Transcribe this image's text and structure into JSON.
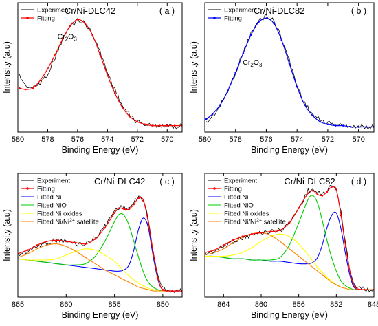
{
  "chart_data": [
    {
      "id": "a",
      "type": "line",
      "title": "Cr/Ni-DLC42",
      "panel_tag": "( a )",
      "xlabel": "Binding Energy (eV)",
      "ylabel": "Intensity (a.u)",
      "xlim": [
        580,
        569
      ],
      "ylim": [
        0,
        1
      ],
      "xticks": [
        580,
        578,
        576,
        574,
        572,
        570
      ],
      "legend_position": "top-left",
      "annotation": {
        "text": "Cr",
        "sub1": "2",
        "mid": "O",
        "sub2": "3",
        "x": 576.7,
        "y": 0.72
      },
      "series": [
        {
          "name": "Experiment",
          "color": "#000000",
          "style": "noisy",
          "marker": false,
          "x": [
            579.9,
            579.5,
            579.0,
            578.5,
            578.0,
            577.5,
            577.0,
            576.5,
            576.0,
            575.5,
            575.0,
            574.5,
            574.0,
            573.5,
            573.0,
            572.5,
            572.0,
            571.5,
            571.0,
            570.5,
            570.0,
            569.5,
            569.0
          ],
          "y": [
            0.44,
            0.36,
            0.34,
            0.38,
            0.45,
            0.58,
            0.72,
            0.82,
            0.87,
            0.84,
            0.76,
            0.62,
            0.46,
            0.33,
            0.2,
            0.13,
            0.08,
            0.06,
            0.05,
            0.05,
            0.05,
            0.04,
            0.05
          ]
        },
        {
          "name": "Fitting",
          "color": "#ff0000",
          "style": "smooth",
          "marker": true,
          "x": [
            579.9,
            579.5,
            579.0,
            578.5,
            578.0,
            577.5,
            577.0,
            576.5,
            576.0,
            575.5,
            575.0,
            574.5,
            574.0,
            573.5,
            573.0,
            572.5,
            572.0,
            571.5,
            571.0,
            570.5,
            570.0,
            569.5,
            569.0
          ],
          "y": [
            0.34,
            0.33,
            0.34,
            0.4,
            0.49,
            0.6,
            0.72,
            0.82,
            0.87,
            0.84,
            0.75,
            0.6,
            0.44,
            0.3,
            0.19,
            0.12,
            0.08,
            0.06,
            0.05,
            0.05,
            0.05,
            0.05,
            0.05
          ]
        }
      ]
    },
    {
      "id": "b",
      "type": "line",
      "title": "Cr/Ni-DLC82",
      "panel_tag": "( b )",
      "xlabel": "Binding Energy (eV)",
      "ylabel": "Intensity (a.u)",
      "xlim": [
        580,
        569
      ],
      "ylim": [
        0,
        1
      ],
      "xticks": [
        580,
        578,
        576,
        574,
        572,
        570
      ],
      "legend_position": "top-left",
      "annotation": {
        "text": "Cr",
        "sub1": "2",
        "mid": "O",
        "sub2": "3",
        "x": 576.9,
        "y": 0.52
      },
      "series": [
        {
          "name": "Experiment",
          "color": "#000000",
          "style": "noisy",
          "marker": false,
          "x": [
            579.9,
            579.5,
            579.0,
            578.5,
            578.0,
            577.5,
            577.0,
            576.5,
            576.0,
            575.5,
            575.0,
            574.5,
            574.0,
            573.5,
            573.0,
            572.5,
            572.0,
            571.5,
            571.0,
            570.5,
            570.0,
            569.5,
            569.0
          ],
          "y": [
            0.07,
            0.12,
            0.2,
            0.32,
            0.46,
            0.62,
            0.76,
            0.86,
            0.9,
            0.86,
            0.73,
            0.55,
            0.36,
            0.22,
            0.14,
            0.09,
            0.07,
            0.06,
            0.05,
            0.05,
            0.04,
            0.04,
            0.04
          ]
        },
        {
          "name": "Fitting",
          "color": "#0000ff",
          "style": "smooth",
          "marker": true,
          "x": [
            579.9,
            579.5,
            579.0,
            578.5,
            578.0,
            577.5,
            577.0,
            576.5,
            576.0,
            575.5,
            575.0,
            574.5,
            574.0,
            573.5,
            573.0,
            572.5,
            572.0,
            571.5,
            571.0,
            570.5,
            570.0,
            569.5,
            569.0
          ],
          "y": [
            0.1,
            0.14,
            0.21,
            0.32,
            0.46,
            0.61,
            0.75,
            0.85,
            0.88,
            0.84,
            0.71,
            0.53,
            0.35,
            0.21,
            0.13,
            0.08,
            0.06,
            0.05,
            0.05,
            0.04,
            0.04,
            0.04,
            0.04
          ]
        }
      ]
    },
    {
      "id": "c",
      "type": "line",
      "title": "Cr/Ni-DLC42",
      "panel_tag": "( c )",
      "xlabel": "Binding Energy (eV)",
      "ylabel": "Intensity (a.u)",
      "xlim": [
        865,
        848
      ],
      "ylim": [
        0,
        1
      ],
      "xticks": [
        865,
        860,
        855,
        850
      ],
      "legend_position": "top-left",
      "series": [
        {
          "name": "Experiment",
          "color": "#000000",
          "style": "noisy",
          "marker": false,
          "x": [
            865,
            864,
            863,
            862,
            861,
            860,
            859,
            858,
            857,
            856,
            855,
            854.5,
            854,
            853.5,
            853,
            852.5,
            852,
            851.5,
            851,
            850.5,
            850,
            849,
            848
          ],
          "y": [
            0.34,
            0.37,
            0.41,
            0.44,
            0.46,
            0.45,
            0.43,
            0.43,
            0.48,
            0.57,
            0.7,
            0.73,
            0.72,
            0.72,
            0.76,
            0.81,
            0.79,
            0.62,
            0.38,
            0.16,
            0.07,
            0.05,
            0.05
          ]
        },
        {
          "name": "Fitting",
          "color": "#ff0000",
          "style": "smooth",
          "marker": true,
          "x": [
            865,
            864,
            863,
            862,
            861,
            860,
            859,
            858,
            857,
            856,
            855,
            854.5,
            854,
            853.5,
            853,
            852.5,
            852,
            851.5,
            851,
            850.5,
            850,
            849,
            848
          ],
          "y": [
            0.35,
            0.38,
            0.42,
            0.45,
            0.46,
            0.45,
            0.44,
            0.43,
            0.47,
            0.56,
            0.68,
            0.72,
            0.71,
            0.71,
            0.75,
            0.8,
            0.78,
            0.6,
            0.36,
            0.15,
            0.06,
            0.05,
            0.05
          ]
        },
        {
          "name": "Fitted Ni",
          "color": "#0000ff",
          "style": "smooth",
          "marker": false,
          "x": [
            865,
            864,
            863,
            862,
            861,
            860,
            859,
            858,
            857,
            856,
            855,
            854.5,
            854,
            853.5,
            853,
            852.5,
            852,
            851.5,
            851,
            850.5,
            850,
            849,
            848
          ],
          "y": [
            0.31,
            0.3,
            0.29,
            0.28,
            0.27,
            0.26,
            0.25,
            0.24,
            0.23,
            0.22,
            0.21,
            0.21,
            0.22,
            0.26,
            0.38,
            0.55,
            0.64,
            0.56,
            0.33,
            0.14,
            0.06,
            0.05,
            0.05
          ]
        },
        {
          "name": "Fitted NiO",
          "color": "#00cc00",
          "style": "smooth",
          "marker": false,
          "x": [
            865,
            864,
            863,
            862,
            861,
            860,
            859,
            858,
            857,
            856,
            855,
            854.5,
            854,
            853.5,
            853,
            852.5,
            852,
            851.5,
            851,
            850.5,
            850,
            849,
            848
          ],
          "y": [
            0.31,
            0.3,
            0.29,
            0.28,
            0.27,
            0.26,
            0.26,
            0.27,
            0.33,
            0.45,
            0.61,
            0.67,
            0.66,
            0.58,
            0.45,
            0.32,
            0.2,
            0.12,
            0.08,
            0.06,
            0.05,
            0.05,
            0.05
          ]
        },
        {
          "name": "Fitted Ni oxides",
          "color": "#ffff00",
          "style": "smooth",
          "marker": false,
          "x": [
            865,
            864,
            863,
            862,
            861,
            860,
            859,
            858,
            857,
            856,
            855,
            854.5,
            854,
            853.5,
            853,
            852.5,
            852,
            851.5,
            851,
            850.5,
            850,
            849,
            848
          ],
          "y": [
            0.31,
            0.3,
            0.3,
            0.3,
            0.31,
            0.34,
            0.37,
            0.39,
            0.38,
            0.34,
            0.29,
            0.25,
            0.21,
            0.17,
            0.14,
            0.11,
            0.09,
            0.07,
            0.06,
            0.05,
            0.05,
            0.05,
            0.05
          ]
        },
        {
          "name": "Fitted Ni/Ni2+ satellite",
          "color": "#ff8000",
          "style": "smooth",
          "marker": false,
          "x": [
            865,
            864,
            863,
            862,
            861,
            860,
            859,
            858,
            857,
            856,
            855,
            854.5,
            854,
            853.5,
            853,
            852.5,
            852,
            851.5,
            851,
            850.5,
            850,
            849,
            848
          ],
          "y": [
            0.32,
            0.35,
            0.39,
            0.42,
            0.43,
            0.41,
            0.37,
            0.32,
            0.27,
            0.22,
            0.18,
            0.16,
            0.14,
            0.12,
            0.1,
            0.08,
            0.07,
            0.06,
            0.05,
            0.05,
            0.05,
            0.05,
            0.05
          ]
        }
      ]
    },
    {
      "id": "d",
      "type": "line",
      "title": "Cr/Ni-DLC82",
      "panel_tag": "( d )",
      "xlabel": "Binding Energy (eV)",
      "ylabel": "Intensity (a.u)",
      "xlim": [
        866,
        848
      ],
      "ylim": [
        0,
        1
      ],
      "xticks": [
        864,
        860,
        856,
        852,
        848
      ],
      "legend_position": "top-left",
      "series": [
        {
          "name": "Experiment",
          "color": "#000000",
          "style": "noisy",
          "marker": false,
          "x": [
            866,
            865,
            864,
            863,
            862,
            861,
            860,
            859,
            858,
            857,
            856,
            855,
            854.5,
            854,
            853.5,
            853,
            852.5,
            852,
            851.5,
            851,
            850.5,
            850,
            849,
            848
          ],
          "y": [
            0.35,
            0.37,
            0.41,
            0.45,
            0.48,
            0.5,
            0.52,
            0.53,
            0.54,
            0.6,
            0.72,
            0.86,
            0.87,
            0.84,
            0.83,
            0.86,
            0.9,
            0.88,
            0.68,
            0.42,
            0.2,
            0.09,
            0.06,
            0.06
          ]
        },
        {
          "name": "Fitting",
          "color": "#ff0000",
          "style": "smooth",
          "marker": true,
          "x": [
            866,
            865,
            864,
            863,
            862,
            861,
            860,
            859,
            858,
            857,
            856,
            855,
            854.5,
            854,
            853.5,
            853,
            852.5,
            852,
            851.5,
            851,
            850.5,
            850,
            849,
            848
          ],
          "y": [
            0.36,
            0.38,
            0.42,
            0.46,
            0.49,
            0.51,
            0.52,
            0.53,
            0.54,
            0.6,
            0.72,
            0.84,
            0.86,
            0.83,
            0.82,
            0.85,
            0.89,
            0.87,
            0.66,
            0.4,
            0.19,
            0.08,
            0.06,
            0.06
          ]
        },
        {
          "name": "Fitted Ni",
          "color": "#0000ff",
          "style": "smooth",
          "marker": false,
          "x": [
            866,
            865,
            864,
            863,
            862,
            861,
            860,
            859,
            858,
            857,
            856,
            855,
            854.5,
            854,
            853.5,
            853,
            852.5,
            852,
            851.5,
            851,
            850.5,
            850,
            849,
            848
          ],
          "y": [
            0.33,
            0.33,
            0.32,
            0.31,
            0.31,
            0.3,
            0.3,
            0.29,
            0.29,
            0.28,
            0.27,
            0.27,
            0.28,
            0.32,
            0.42,
            0.56,
            0.66,
            0.68,
            0.55,
            0.34,
            0.16,
            0.07,
            0.06,
            0.06
          ]
        },
        {
          "name": "Fitted NiO",
          "color": "#00cc00",
          "style": "smooth",
          "marker": false,
          "x": [
            866,
            865,
            864,
            863,
            862,
            861,
            860,
            859,
            858,
            857,
            856,
            855,
            854.5,
            854,
            853.5,
            853,
            852.5,
            852,
            851.5,
            851,
            850.5,
            850,
            849,
            848
          ],
          "y": [
            0.33,
            0.33,
            0.32,
            0.31,
            0.31,
            0.3,
            0.3,
            0.3,
            0.32,
            0.42,
            0.6,
            0.79,
            0.82,
            0.76,
            0.62,
            0.46,
            0.32,
            0.21,
            0.13,
            0.09,
            0.07,
            0.06,
            0.06,
            0.06
          ]
        },
        {
          "name": "Fitted Ni oxides",
          "color": "#ffff00",
          "style": "smooth",
          "marker": false,
          "x": [
            866,
            865,
            864,
            863,
            862,
            861,
            860,
            859,
            858,
            857,
            856,
            855,
            854.5,
            854,
            853.5,
            853,
            852.5,
            852,
            851.5,
            851,
            850.5,
            850,
            849,
            848
          ],
          "y": [
            0.33,
            0.33,
            0.33,
            0.34,
            0.36,
            0.4,
            0.45,
            0.49,
            0.51,
            0.49,
            0.43,
            0.34,
            0.29,
            0.24,
            0.2,
            0.16,
            0.13,
            0.1,
            0.08,
            0.07,
            0.06,
            0.06,
            0.06,
            0.06
          ]
        },
        {
          "name": "Fitted Ni/Ni2+ satellite",
          "color": "#ff8000",
          "style": "smooth",
          "marker": false,
          "x": [
            866,
            865,
            864,
            863,
            862,
            861,
            860,
            859,
            858,
            857,
            856,
            855,
            854.5,
            854,
            853.5,
            853,
            852.5,
            852,
            851.5,
            851,
            850.5,
            850,
            849,
            848
          ],
          "y": [
            0.34,
            0.36,
            0.39,
            0.44,
            0.48,
            0.51,
            0.52,
            0.5,
            0.45,
            0.39,
            0.33,
            0.27,
            0.24,
            0.21,
            0.18,
            0.15,
            0.12,
            0.1,
            0.08,
            0.07,
            0.06,
            0.06,
            0.06,
            0.06
          ]
        }
      ]
    }
  ]
}
